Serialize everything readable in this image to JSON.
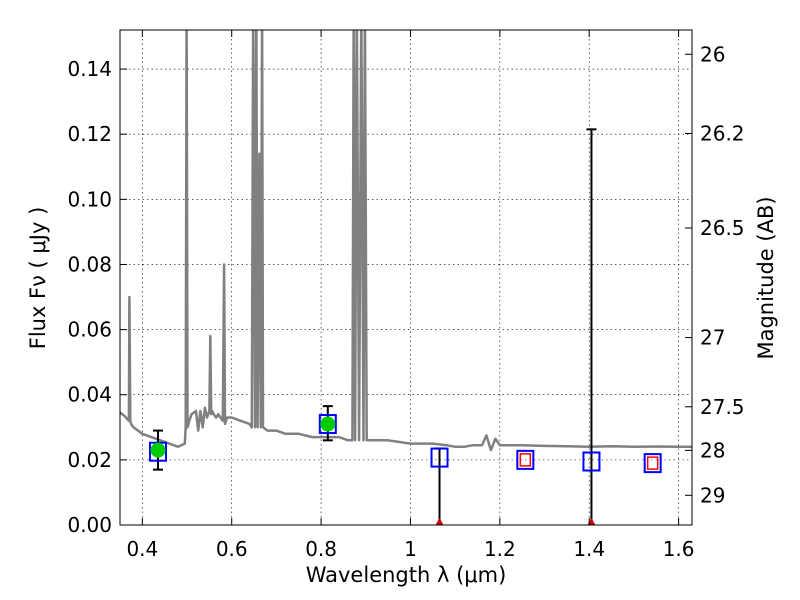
{
  "chart_data": {
    "type": "scatter",
    "xlabel": "Wavelength  λ (μm)",
    "ylabel": "Flux  Fν ( μJy )",
    "y2label": "Magnitude (AB)",
    "xlim": [
      0.35,
      1.63
    ],
    "ylim": [
      0,
      0.152
    ],
    "grid": true,
    "x_ticks": [
      "0.4",
      "0.6",
      "0.8",
      "1",
      "1.2",
      "1.4",
      "1.6"
    ],
    "y_ticks": [
      "0.00",
      "0.02",
      "0.04",
      "0.06",
      "0.08",
      "0.10",
      "0.12",
      "0.14"
    ],
    "y2_ticks": [
      "26",
      "26.2",
      "26.5",
      "27",
      "27.5",
      "28",
      "29"
    ],
    "colors": {
      "spectrum": "#808080",
      "detected_marker": "#00cc00",
      "model_box": "#0000ff",
      "upper_limit_box": "#ff0000",
      "errorbar": "#000000",
      "limit_arrow": "#cc0000"
    },
    "spectrum": {
      "x": [
        0.35,
        0.36,
        0.37,
        0.371,
        0.373,
        0.375,
        0.38,
        0.4,
        0.42,
        0.44,
        0.46,
        0.48,
        0.495,
        0.497,
        0.499,
        0.501,
        0.503,
        0.505,
        0.51,
        0.52,
        0.525,
        0.53,
        0.535,
        0.54,
        0.545,
        0.55,
        0.552,
        0.554,
        0.556,
        0.56,
        0.565,
        0.57,
        0.575,
        0.58,
        0.583,
        0.585,
        0.587,
        0.59,
        0.6,
        0.62,
        0.64,
        0.645,
        0.648,
        0.652,
        0.655,
        0.658,
        0.662,
        0.665,
        0.668,
        0.67,
        0.68,
        0.7,
        0.72,
        0.75,
        0.78,
        0.8,
        0.82,
        0.84,
        0.86,
        0.87,
        0.873,
        0.876,
        0.88,
        0.885,
        0.89,
        0.895,
        0.898,
        0.902,
        0.905,
        0.92,
        0.95,
        1.0,
        1.05,
        1.08,
        1.1,
        1.12,
        1.14,
        1.16,
        1.17,
        1.18,
        1.19,
        1.2,
        1.25,
        1.3,
        1.35,
        1.4,
        1.45,
        1.5,
        1.55,
        1.6,
        1.63
      ],
      "y": [
        0.0345,
        0.0335,
        0.032,
        0.07,
        0.032,
        0.031,
        0.03,
        0.028,
        0.027,
        0.026,
        0.025,
        0.024,
        0.025,
        0.03,
        0.16,
        0.03,
        0.031,
        0.032,
        0.034,
        0.035,
        0.029,
        0.035,
        0.03,
        0.036,
        0.033,
        0.035,
        0.058,
        0.034,
        0.035,
        0.034,
        0.033,
        0.034,
        0.033,
        0.032,
        0.08,
        0.031,
        0.032,
        0.033,
        0.033,
        0.032,
        0.031,
        0.03,
        0.16,
        0.03,
        0.16,
        0.03,
        0.114,
        0.03,
        0.16,
        0.03,
        0.029,
        0.029,
        0.028,
        0.028,
        0.027,
        0.027,
        0.027,
        0.027,
        0.026,
        0.026,
        0.16,
        0.026,
        0.16,
        0.026,
        0.16,
        0.026,
        0.16,
        0.026,
        0.026,
        0.026,
        0.026,
        0.025,
        0.025,
        0.0245,
        0.024,
        0.024,
        0.0245,
        0.0245,
        0.0275,
        0.023,
        0.0265,
        0.0245,
        0.0245,
        0.0243,
        0.0242,
        0.024,
        0.0242,
        0.024,
        0.0241,
        0.024,
        0.024
      ]
    },
    "detections": {
      "x": [
        0.435,
        0.815
      ],
      "y": [
        0.023,
        0.031
      ],
      "yerr_low": [
        0.006,
        0.005
      ],
      "yerr_high": [
        0.006,
        0.0055
      ]
    },
    "model_boxes": {
      "x": [
        0.435,
        0.815,
        1.065,
        1.257,
        1.405,
        1.542
      ],
      "y": [
        0.0225,
        0.031,
        0.0207,
        0.02,
        0.0195,
        0.019
      ]
    },
    "upper_limits": {
      "x": [
        1.257,
        1.542
      ],
      "y": [
        0.02,
        0.019
      ]
    },
    "limit_errorbars": {
      "x": [
        1.065,
        1.405
      ],
      "y_low": [
        0.0,
        0.0
      ],
      "y_high": [
        0.0235,
        0.1215
      ]
    }
  }
}
